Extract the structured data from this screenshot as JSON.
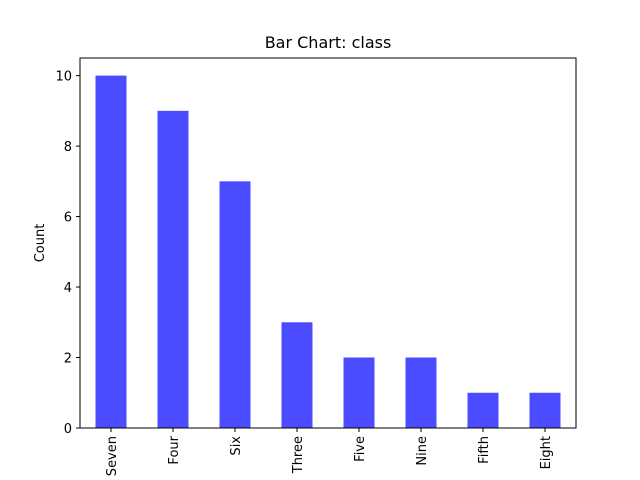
{
  "chart_data": {
    "type": "bar",
    "title": "Bar Chart: class",
    "xlabel": "",
    "ylabel": "Count",
    "categories": [
      "Seven",
      "Four",
      "Six",
      "Three",
      "Five",
      "Nine",
      "Fifth",
      "Eight"
    ],
    "values": [
      10,
      9,
      7,
      3,
      2,
      2,
      1,
      1
    ],
    "ylim": [
      0,
      10.5
    ],
    "yticks": [
      0,
      2,
      4,
      6,
      8,
      10
    ],
    "bar_color": "#4b4bff",
    "grid": false,
    "legend": "none"
  }
}
